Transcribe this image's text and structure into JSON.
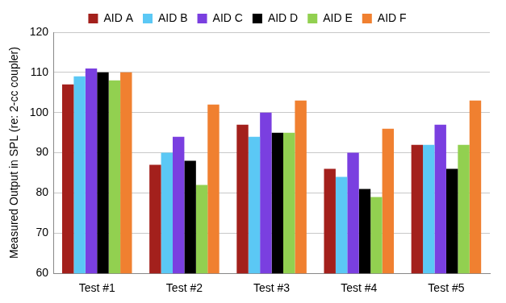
{
  "chart_data": {
    "type": "bar",
    "y_label": "Measured Output in SPL (re: 2-cc coupler)",
    "categories": [
      "Test #1",
      "Test #2",
      "Test #3",
      "Test #4",
      "Test #5"
    ],
    "series": [
      {
        "name": "AID A",
        "color": "#a3201c",
        "values": [
          107,
          87,
          97,
          86,
          92
        ]
      },
      {
        "name": "AID B",
        "color": "#5bc8f5",
        "values": [
          109,
          90,
          94,
          84,
          92
        ]
      },
      {
        "name": "AID C",
        "color": "#7a3fe0",
        "values": [
          111,
          94,
          100,
          90,
          97
        ]
      },
      {
        "name": "AID D",
        "color": "#000000",
        "values": [
          110,
          88,
          95,
          81,
          86
        ]
      },
      {
        "name": "AID E",
        "color": "#92d050",
        "values": [
          108,
          82,
          95,
          79,
          92
        ]
      },
      {
        "name": "AID F",
        "color": "#f08030",
        "values": [
          110,
          102,
          103,
          96,
          103
        ]
      }
    ],
    "ylim": [
      60,
      120
    ],
    "yticks": [
      60,
      70,
      80,
      90,
      100,
      110,
      120
    ],
    "grid": true,
    "legend": "top"
  }
}
